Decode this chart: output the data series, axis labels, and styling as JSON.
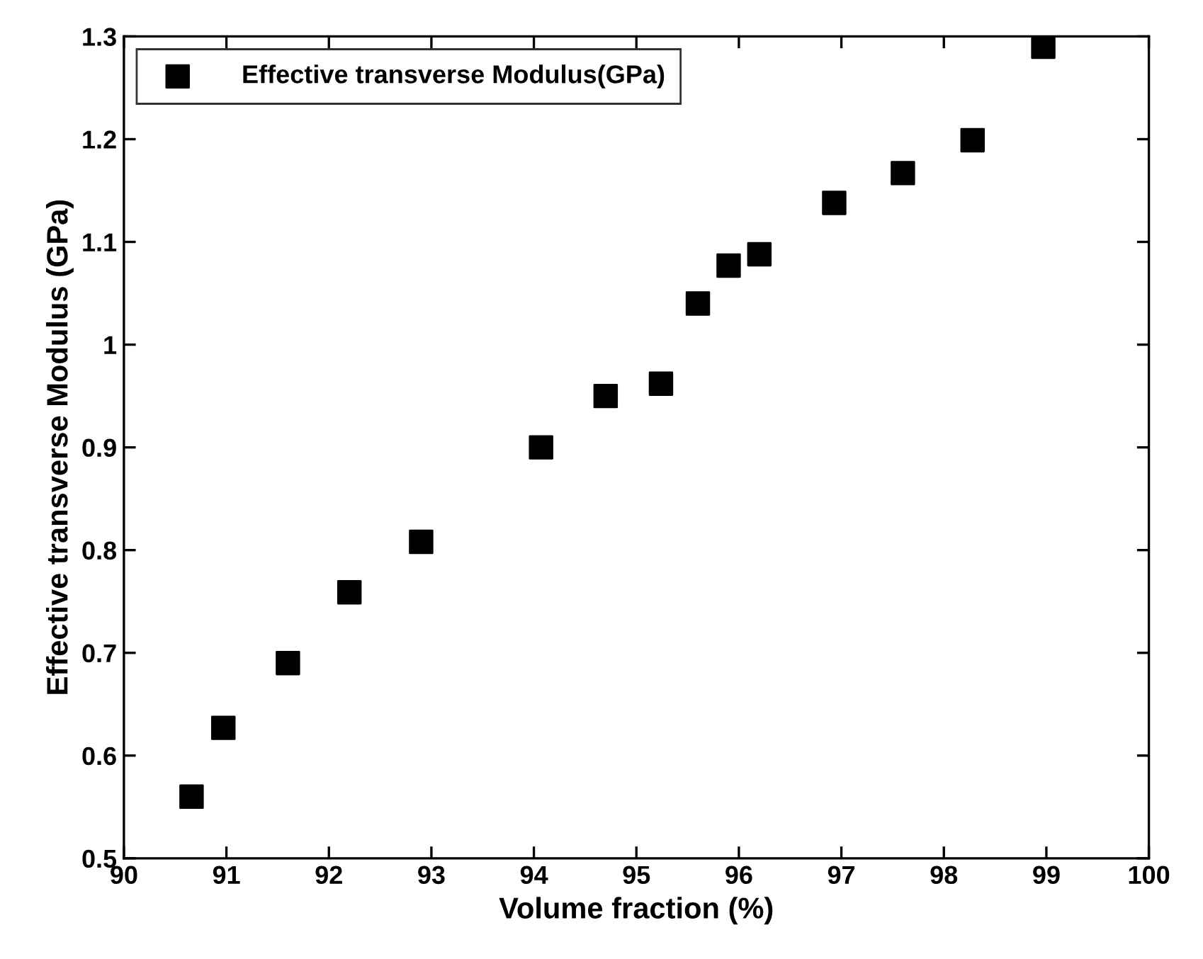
{
  "chart_data": {
    "type": "scatter",
    "xlabel": "Volume fraction (%)",
    "ylabel": "Effective transverse Modulus (GPa)",
    "x": [
      90.66,
      90.97,
      91.6,
      92.2,
      92.9,
      94.07,
      94.7,
      95.24,
      95.6,
      95.9,
      96.2,
      96.93,
      97.6,
      98.28,
      98.97
    ],
    "series": [
      {
        "name": "Effective transverse Modulus(GPa)",
        "color": "#000000",
        "values": [
          0.56,
          0.627,
          0.69,
          0.759,
          0.808,
          0.9,
          0.95,
          0.962,
          1.04,
          1.077,
          1.088,
          1.138,
          1.167,
          1.199,
          1.29
        ]
      }
    ],
    "xlim": [
      90,
      100
    ],
    "xticks": [
      90,
      91,
      92,
      93,
      94,
      95,
      96,
      97,
      98,
      99,
      100
    ],
    "ylim": [
      0.5,
      1.3
    ],
    "yticks": [
      0.5,
      0.6,
      0.7,
      0.8,
      0.9,
      1,
      1.1,
      1.2,
      1.3
    ],
    "marker": "square",
    "legend": "top left",
    "grid": false
  }
}
